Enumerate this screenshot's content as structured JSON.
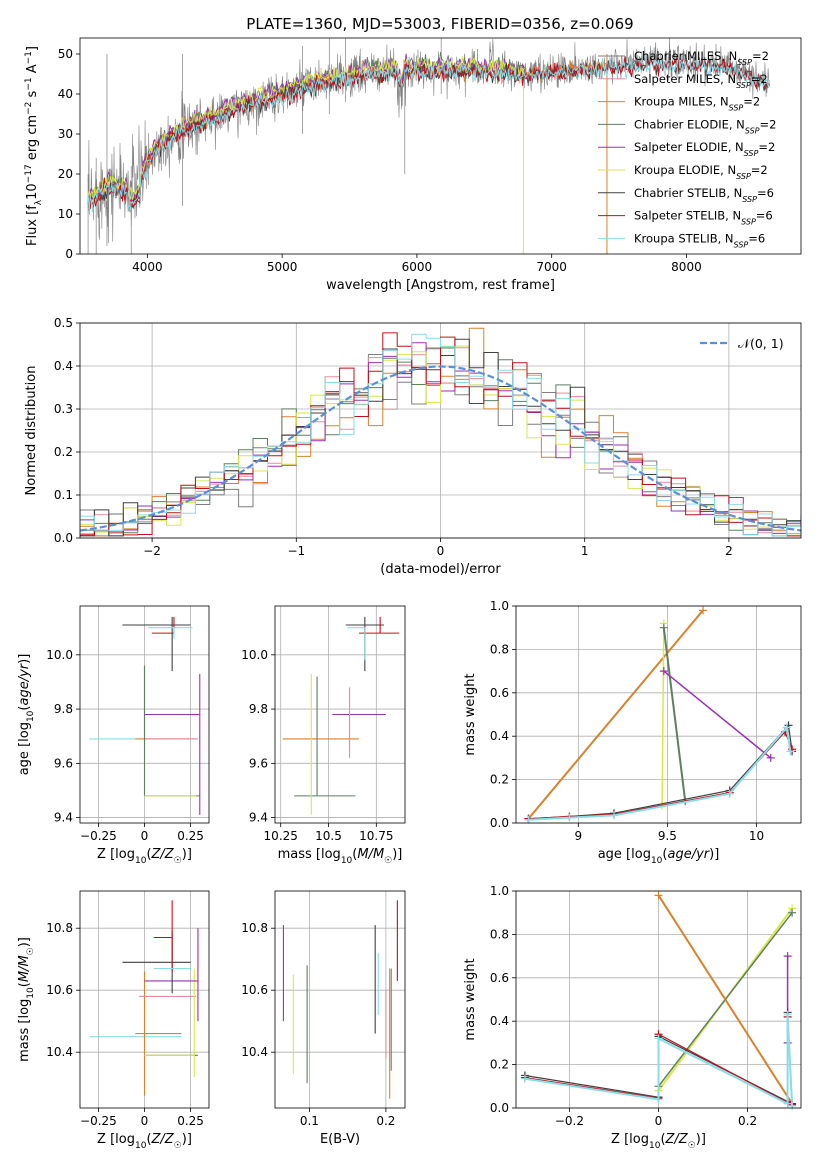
{
  "figure_title": "PLATE=1360, MJD=53003, FIBERID=0356, z=0.069",
  "colors": {
    "Chabrier MILES": "#7f7f7f",
    "Salpeter MILES": "#e98aa0",
    "Kroupa MILES": "#d9822b",
    "Chabrier ELODIE": "#5e7f60",
    "Salpeter ELODIE": "#9b30b0",
    "Kroupa ELODIE": "#d8e84a",
    "Chabrier STELIB": "#404040",
    "Salpeter STELIB": "#c0101a",
    "Kroupa STELIB": "#88dde8",
    "data": "#808080",
    "normal": "#5b8fd6"
  },
  "chart_data": [
    {
      "id": "spectrum",
      "type": "line",
      "xlabel": "wavelength [Angstrom, rest frame]",
      "ylabel": "Flux [f_λ10^-17 erg cm^-2 s^-1 A^-1]",
      "xlim": [
        3500,
        8850
      ],
      "ylim": [
        0,
        54
      ],
      "xticks": [
        4000,
        5000,
        6000,
        7000,
        8000
      ],
      "yticks": [
        0,
        10,
        20,
        30,
        40,
        50
      ],
      "grid": false,
      "legend_position": "right",
      "legend": [
        {
          "name": "Chabrier MILES",
          "nssp": "2"
        },
        {
          "name": "Salpeter MILES",
          "nssp": "2"
        },
        {
          "name": "Kroupa MILES",
          "nssp": "2"
        },
        {
          "name": "Chabrier ELODIE",
          "nssp": "2"
        },
        {
          "name": "Salpeter ELODIE",
          "nssp": "2"
        },
        {
          "name": "Kroupa ELODIE",
          "nssp": "2"
        },
        {
          "name": "Chabrier STELIB",
          "nssp": "6"
        },
        {
          "name": "Salpeter STELIB",
          "nssp": "6"
        },
        {
          "name": "Kroupa STELIB",
          "nssp": "6"
        }
      ],
      "continuum": [
        [
          3560,
          13
        ],
        [
          3700,
          17
        ],
        [
          3850,
          16
        ],
        [
          3950,
          19
        ],
        [
          4050,
          26
        ],
        [
          4200,
          30
        ],
        [
          4400,
          33
        ],
        [
          4700,
          37
        ],
        [
          5000,
          40
        ],
        [
          5300,
          43
        ],
        [
          5600,
          45
        ],
        [
          5900,
          46
        ],
        [
          6200,
          46
        ],
        [
          6500,
          46
        ],
        [
          6800,
          45
        ],
        [
          7100,
          46
        ],
        [
          7400,
          47
        ],
        [
          7700,
          48
        ],
        [
          8000,
          48
        ],
        [
          8300,
          47
        ],
        [
          8600,
          43
        ]
      ]
    },
    {
      "id": "residuals",
      "type": "line",
      "xlabel": "(data-model)/error",
      "ylabel": "Normed distribution",
      "xlim": [
        -2.5,
        2.5
      ],
      "ylim": [
        0,
        0.5
      ],
      "xticks": [
        -2,
        -1,
        0,
        1,
        2
      ],
      "yticks": [
        0.0,
        0.1,
        0.2,
        0.3,
        0.4,
        0.5
      ],
      "grid": true,
      "legend_position": "upper right",
      "legend_label": "𝒩(0, 1)",
      "bin_width": 0.1
    },
    {
      "id": "age_vs_Z",
      "type": "scatter",
      "xlabel": "Z [log₁₀(Z/Z☉)]",
      "ylabel": "age  [log₁₀(age/yr)]",
      "xlim": [
        -0.35,
        0.35
      ],
      "ylim": [
        9.38,
        10.18
      ],
      "xticks": [
        -0.25,
        0.0,
        0.25
      ],
      "yticks": [
        9.4,
        9.6,
        9.8,
        10.0
      ],
      "grid": true,
      "points": [
        {
          "model": "Kroupa STELIB",
          "x": 0.0,
          "xerr": [
            0.3,
            0.2
          ],
          "y": 9.69,
          "yerr": [
            0.0,
            0.0
          ]
        },
        {
          "model": "Kroupa MILES",
          "x": 0.0,
          "xerr": [
            0.05,
            0.27
          ],
          "y": 9.69,
          "yerr": [
            0.0,
            0.27
          ]
        },
        {
          "model": "Salpeter MILES",
          "x": 0.01,
          "xerr": [
            0.0,
            0.28
          ],
          "y": 9.69,
          "yerr": [
            0.0,
            0.0
          ]
        },
        {
          "model": "Chabrier ELODIE",
          "x": 0.0,
          "xerr": [
            0.0,
            0.3
          ],
          "y": 9.48,
          "yerr": [
            0.0,
            0.48
          ]
        },
        {
          "model": "Kroupa ELODIE",
          "x": 0.28,
          "xerr": [
            0.28,
            0.0
          ],
          "y": 9.48,
          "yerr": [
            0.0,
            0.0
          ]
        },
        {
          "model": "Salpeter ELODIE",
          "x": 0.3,
          "xerr": [
            0.3,
            0.0
          ],
          "y": 9.78,
          "yerr": [
            0.37,
            0.15
          ]
        },
        {
          "model": "Chabrier STELIB",
          "x": 0.15,
          "xerr": [
            0.27,
            0.1
          ],
          "y": 10.11,
          "yerr": [
            0.17,
            0.03
          ]
        },
        {
          "model": "Salpeter STELIB",
          "x": 0.16,
          "xerr": [
            0.12,
            0.0
          ],
          "y": 10.08,
          "yerr": [
            0.0,
            0.06
          ]
        },
        {
          "model": "Kroupa STELIB",
          "x": 0.16,
          "xerr": [
            0.14,
            0.1
          ],
          "y": 10.1,
          "yerr": [
            0.04,
            0.0
          ]
        }
      ]
    },
    {
      "id": "age_vs_mass",
      "type": "scatter",
      "xlabel": "mass [log₁₀(M/M☉)]",
      "ylabel": "",
      "xlim": [
        10.22,
        10.9
      ],
      "ylim": [
        9.38,
        10.18
      ],
      "xticks": [
        10.25,
        10.5,
        10.75
      ],
      "yticks": [
        9.4,
        9.6,
        9.8,
        10.0
      ],
      "grid": true,
      "points": [
        {
          "model": "Kroupa MILES",
          "x": 10.46,
          "xerr": [
            0.2,
            0.2
          ],
          "y": 9.69,
          "yerr": [
            0.0,
            0.0
          ]
        },
        {
          "model": "Chabrier ELODIE",
          "x": 10.44,
          "xerr": [
            0.12,
            0.2
          ],
          "y": 9.48,
          "yerr": [
            0.0,
            0.44
          ]
        },
        {
          "model": "Kroupa ELODIE",
          "x": 10.41,
          "xerr": [
            0.0,
            0.0
          ],
          "y": 9.48,
          "yerr": [
            0.07,
            0.45
          ]
        },
        {
          "model": "Salpeter ELODIE",
          "x": 10.65,
          "xerr": [
            0.13,
            0.15
          ],
          "y": 9.78,
          "yerr": [
            0.0,
            0.0
          ]
        },
        {
          "model": "Salpeter MILES",
          "x": 10.61,
          "xerr": [
            0.0,
            0.0
          ],
          "y": 9.69,
          "yerr": [
            0.07,
            0.19
          ]
        },
        {
          "model": "Chabrier STELIB",
          "x": 10.69,
          "xerr": [
            0.1,
            0.1
          ],
          "y": 10.11,
          "yerr": [
            0.17,
            0.03
          ]
        },
        {
          "model": "Salpeter STELIB",
          "x": 10.77,
          "xerr": [
            0.11,
            0.1
          ],
          "y": 10.08,
          "yerr": [
            0.0,
            0.06
          ]
        },
        {
          "model": "Kroupa STELIB",
          "x": 10.69,
          "xerr": [
            0.09,
            0.0
          ],
          "y": 10.1,
          "yerr": [
            0.12,
            0.0
          ]
        }
      ]
    },
    {
      "id": "weight_vs_age",
      "type": "line",
      "xlabel": "age  [log₁₀(age/yr)]",
      "ylabel": "mass weight",
      "xlim": [
        8.65,
        10.25
      ],
      "ylim": [
        0,
        1.0
      ],
      "xticks": [
        9.0,
        9.5,
        10.0
      ],
      "yticks": [
        0.0,
        0.2,
        0.4,
        0.6,
        0.8,
        1.0
      ],
      "grid": true,
      "series": [
        {
          "model": "Kroupa MILES",
          "width": 2,
          "x": [
            8.72,
            9.7
          ],
          "y": [
            0.02,
            0.98
          ]
        },
        {
          "model": "Kroupa ELODIE",
          "width": 1.5,
          "x": [
            9.47,
            9.48
          ],
          "y": [
            0.08,
            0.92
          ]
        },
        {
          "model": "Chabrier ELODIE",
          "width": 2,
          "x": [
            9.48,
            9.6
          ],
          "y": [
            0.9,
            0.1
          ]
        },
        {
          "model": "Salpeter ELODIE",
          "width": 1.5,
          "x": [
            9.48,
            10.08
          ],
          "y": [
            0.7,
            0.3
          ]
        },
        {
          "model": "Chabrier STELIB",
          "width": 1.2,
          "x": [
            8.72,
            8.95,
            9.2,
            9.85,
            10.18,
            10.2
          ],
          "y": [
            0.02,
            0.03,
            0.045,
            0.15,
            0.45,
            0.33
          ]
        },
        {
          "model": "Salpeter STELIB",
          "width": 1.2,
          "x": [
            8.72,
            8.95,
            9.2,
            9.85,
            10.16,
            10.2
          ],
          "y": [
            0.02,
            0.03,
            0.04,
            0.14,
            0.42,
            0.34
          ]
        },
        {
          "model": "Kroupa STELIB",
          "width": 2,
          "x": [
            8.72,
            8.95,
            9.2,
            9.85,
            10.17,
            10.19
          ],
          "y": [
            0.015,
            0.025,
            0.035,
            0.135,
            0.44,
            0.33
          ]
        }
      ]
    },
    {
      "id": "mass_vs_Z",
      "type": "scatter",
      "xlabel": "Z [log₁₀(Z/Z☉)]",
      "ylabel": "mass [log₁₀(M/M☉)]",
      "xlim": [
        -0.35,
        0.35
      ],
      "ylim": [
        10.22,
        10.92
      ],
      "xticks": [
        -0.25,
        0.0,
        0.25
      ],
      "yticks": [
        10.4,
        10.6,
        10.8
      ],
      "grid": true,
      "points": [
        {
          "model": "Kroupa STELIB",
          "x": 0.0,
          "xerr": [
            0.3,
            0.2
          ],
          "y": 10.45,
          "yerr": [
            0.0,
            0.0
          ]
        },
        {
          "model": "Kroupa MILES",
          "x": 0.0,
          "xerr": [
            0.05,
            0.2
          ],
          "y": 10.46,
          "yerr": [
            0.2,
            0.2
          ]
        },
        {
          "model": "Salpeter MILES",
          "x": 0.0,
          "xerr": [
            0.03,
            0.28
          ],
          "y": 10.58,
          "yerr": [
            0.0,
            0.0
          ]
        },
        {
          "model": "Chabrier ELODIE",
          "x": 0.01,
          "xerr": [
            0.0,
            0.28
          ],
          "y": 10.39,
          "yerr": [
            0.0,
            0.0
          ]
        },
        {
          "model": "Kroupa ELODIE",
          "x": 0.27,
          "xerr": [
            0.27,
            0.0
          ],
          "y": 10.39,
          "yerr": [
            0.07,
            0.28
          ]
        },
        {
          "model": "Salpeter ELODIE",
          "x": 0.29,
          "xerr": [
            0.29,
            0.0
          ],
          "y": 10.63,
          "yerr": [
            0.13,
            0.17
          ]
        },
        {
          "model": "Chabrier STELIB",
          "x": 0.15,
          "xerr": [
            0.27,
            0.1
          ],
          "y": 10.69,
          "yerr": [
            0.1,
            0.1
          ]
        },
        {
          "model": "Salpeter STELIB",
          "x": 0.15,
          "xerr": [
            0.1,
            0.0
          ],
          "y": 10.77,
          "yerr": [
            0.11,
            0.12
          ]
        },
        {
          "model": "Kroupa STELIB",
          "x": 0.15,
          "xerr": [
            0.1,
            0.1
          ],
          "y": 10.67,
          "yerr": [
            0.0,
            0.0
          ]
        }
      ]
    },
    {
      "id": "mass_vs_ebv",
      "type": "scatter",
      "xlabel": "E(B-V)",
      "ylabel": "",
      "xlim": [
        0.055,
        0.225
      ],
      "ylim": [
        10.22,
        10.92
      ],
      "xticks": [
        0.1,
        0.2
      ],
      "yticks": [
        10.4,
        10.6,
        10.8
      ],
      "grid": true,
      "points": [
        {
          "model": "Salpeter ELODIE",
          "x": 0.066,
          "xerr": [
            0,
            0
          ],
          "y": 10.65,
          "yerr": [
            0.15,
            0.16
          ]
        },
        {
          "model": "Kroupa ELODIE",
          "x": 0.079,
          "xerr": [
            0,
            0
          ],
          "y": 10.5,
          "yerr": [
            0.17,
            0.15
          ]
        },
        {
          "model": "Chabrier ELODIE",
          "x": 0.097,
          "xerr": [
            0,
            0
          ],
          "y": 10.49,
          "yerr": [
            0.19,
            0.19
          ]
        },
        {
          "model": "Chabrier STELIB",
          "x": 0.186,
          "xerr": [
            0,
            0
          ],
          "y": 10.64,
          "yerr": [
            0.18,
            0.17
          ]
        },
        {
          "model": "Kroupa STELIB",
          "x": 0.19,
          "xerr": [
            0,
            0
          ],
          "y": 10.62,
          "yerr": [
            0.1,
            0.1
          ]
        },
        {
          "model": "Salpeter MILES",
          "x": 0.2,
          "xerr": [
            0,
            0
          ],
          "y": 10.5,
          "yerr": [
            0.12,
            0.1
          ]
        },
        {
          "model": "Kroupa MILES",
          "x": 0.205,
          "xerr": [
            0,
            0
          ],
          "y": 10.46,
          "yerr": [
            0.21,
            0.21
          ]
        },
        {
          "model": "Chabrier MILES",
          "x": 0.207,
          "xerr": [
            0,
            0
          ],
          "y": 10.51,
          "yerr": [
            0.17,
            0.16
          ]
        },
        {
          "model": "Salpeter STELIB",
          "x": 0.215,
          "xerr": [
            0,
            0
          ],
          "y": 10.76,
          "yerr": [
            0.13,
            0.13
          ]
        }
      ]
    },
    {
      "id": "weight_vs_Z",
      "type": "line",
      "xlabel": "Z [log₁₀(Z/Z☉)]",
      "ylabel": "mass weight",
      "xlim": [
        -0.32,
        0.32
      ],
      "ylim": [
        0,
        1.0
      ],
      "xticks": [
        -0.2,
        0.0,
        0.2
      ],
      "yticks": [
        0.0,
        0.2,
        0.4,
        0.6,
        0.8,
        1.0
      ],
      "grid": true,
      "series": [
        {
          "model": "Kroupa MILES",
          "width": 2,
          "x": [
            0.0,
            0.3
          ],
          "y": [
            0.98,
            0.02
          ]
        },
        {
          "model": "Kroupa ELODIE",
          "width": 2,
          "x": [
            0.0,
            0.3
          ],
          "y": [
            0.08,
            0.92
          ]
        },
        {
          "model": "Chabrier ELODIE",
          "width": 1.5,
          "x": [
            0.0,
            0.3
          ],
          "y": [
            0.1,
            0.9
          ]
        },
        {
          "model": "Salpeter ELODIE",
          "width": 1.5,
          "x": [
            0.29,
            0.29
          ],
          "y": [
            0.3,
            0.7
          ]
        },
        {
          "model": "Chabrier STELIB",
          "width": 1.2,
          "x": [
            -0.3,
            0.0,
            0.0,
            0.29,
            0.29,
            0.3
          ],
          "y": [
            0.15,
            0.05,
            0.33,
            0.03,
            0.44,
            0.02
          ]
        },
        {
          "model": "Salpeter STELIB",
          "width": 1.2,
          "x": [
            -0.3,
            0.0,
            0.0,
            0.29,
            0.29,
            0.3
          ],
          "y": [
            0.14,
            0.045,
            0.34,
            0.025,
            0.42,
            0.015
          ]
        },
        {
          "model": "Kroupa STELIB",
          "width": 2,
          "x": [
            -0.3,
            0.0,
            0.0,
            0.29,
            0.29,
            0.3
          ],
          "y": [
            0.135,
            0.04,
            0.32,
            0.02,
            0.43,
            0.01
          ]
        }
      ]
    }
  ]
}
